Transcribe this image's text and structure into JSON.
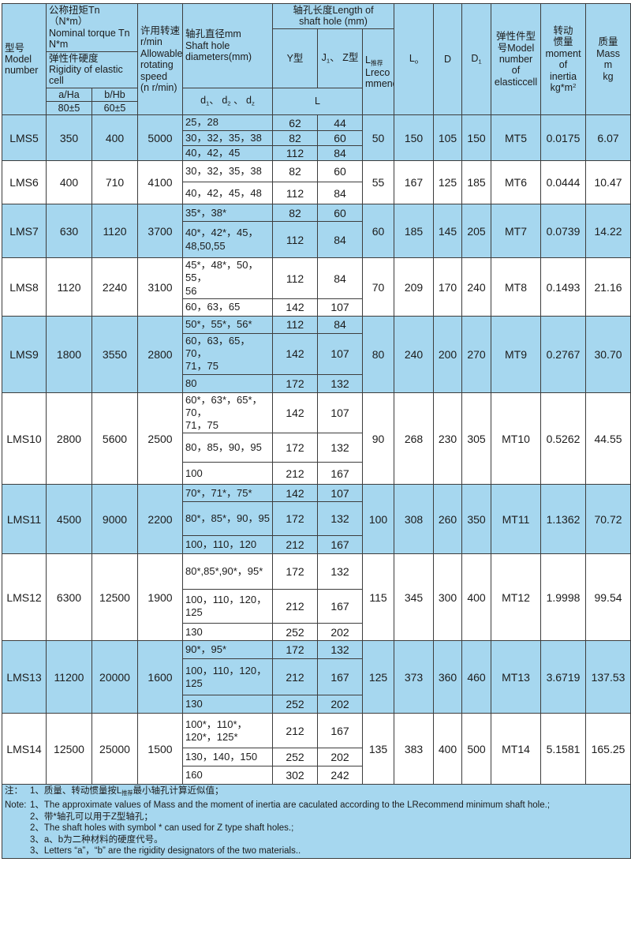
{
  "colors": {
    "row_blue": "#a6d7ef",
    "grid_line": "#3d3d3d",
    "text": "#1c1c1c"
  },
  "table": {
    "header": {
      "model": "型号\nModel\nnumber",
      "torque_group": "公称扭矩Tn（N*m）\nNominal torque Tn\nN*m",
      "rigidity": "弹性件硬度\nRigidity of elastic cell",
      "col_a": "a/Ha",
      "col_b": "b/Hb",
      "val_a": "80±5",
      "val_b": "60±5",
      "speed": "许用转速\nr/min\nAllowable\nrotating\nspeed\n(n r/min)",
      "shaft_dia": "轴孔直径mm\nShaft hole\ndiameters(mm)",
      "d_parts": [
        {
          "t": "d"
        },
        {
          "t": "1",
          "sub": true
        },
        {
          "t": "、 d"
        },
        {
          "t": "2",
          "sub": true
        },
        {
          "t": " 、 d"
        },
        {
          "t": "z",
          "sub": true
        }
      ],
      "shaft_len": "轴孔长度Length of\nshaft hole (mm)",
      "y_type": "Y型",
      "j_type_parts": [
        {
          "t": "J"
        },
        {
          "t": "1",
          "sub": true
        },
        {
          "t": "、 Z型"
        }
      ],
      "l_label": "L",
      "lrec_parts": [
        {
          "t": "L"
        },
        {
          "t": "推荐",
          "sub": true
        },
        {
          "t": "\nLreco\nmmend"
        }
      ],
      "l0_parts": [
        {
          "t": "L"
        },
        {
          "t": "o",
          "sub": true
        }
      ],
      "d_col": "D",
      "d1_parts": [
        {
          "t": "D"
        },
        {
          "t": "1",
          "sub": true
        }
      ],
      "elastic": "弹性件型\n号Model\nnumber\nof\nelasticcell",
      "inertia_parts": [
        {
          "t": "转动\n惯量\nmoment\nof\ninertia\nkg*m"
        },
        {
          "t": "2",
          "sup": true
        }
      ],
      "mass": "质量\nMass\nm\nkg"
    },
    "rows": [
      {
        "model": "LMS5",
        "a": "350",
        "b": "400",
        "speed": "5000",
        "lrec": "50",
        "l0": "150",
        "d": "105",
        "d1": "150",
        "mt": "MT5",
        "inertia": "0.0175",
        "mass": "6.07",
        "subs": [
          {
            "dia": "25，28",
            "y": "62",
            "j": "44"
          },
          {
            "dia": "30，32，35，38",
            "y": "82",
            "j": "60"
          },
          {
            "dia": "40，42，45",
            "y": "112",
            "j": "84"
          }
        ]
      },
      {
        "model": "LMS6",
        "a": "400",
        "b": "710",
        "speed": "4100",
        "lrec": "55",
        "l0": "167",
        "d": "125",
        "d1": "185",
        "mt": "MT6",
        "inertia": "0.0444",
        "mass": "10.47",
        "subs": [
          {
            "dia": "30，32，35，38",
            "y": "82",
            "j": "60"
          },
          {
            "dia": "40，42，45，48",
            "y": "112",
            "j": "84"
          }
        ]
      },
      {
        "model": "LMS7",
        "a": "630",
        "b": "1120",
        "speed": "3700",
        "lrec": "60",
        "l0": "185",
        "d": "145",
        "d1": "205",
        "mt": "MT7",
        "inertia": "0.0739",
        "mass": "14.22",
        "subs": [
          {
            "dia": "35*，38*",
            "y": "82",
            "j": "60"
          },
          {
            "dia": "40*，42*，45，\n48,50,55",
            "y": "112",
            "j": "84"
          }
        ]
      },
      {
        "model": "LMS8",
        "a": "1120",
        "b": "2240",
        "speed": "3100",
        "lrec": "70",
        "l0": "209",
        "d": "170",
        "d1": "240",
        "mt": "MT8",
        "inertia": "0.1493",
        "mass": "21.16",
        "subs": [
          {
            "dia": "45*，48*，50，55，\n56",
            "y": "112",
            "j": "84"
          },
          {
            "dia": "60，63，65",
            "y": "142",
            "j": "107"
          }
        ]
      },
      {
        "model": "LMS9",
        "a": "1800",
        "b": "3550",
        "speed": "2800",
        "lrec": "80",
        "l0": "240",
        "d": "200",
        "d1": "270",
        "mt": "MT9",
        "inertia": "0.2767",
        "mass": "30.70",
        "subs": [
          {
            "dia": "50*，55*，56*",
            "y": "112",
            "j": "84"
          },
          {
            "dia": "60，63，65，70，\n71，75",
            "y": "142",
            "j": "107"
          },
          {
            "dia": "80",
            "y": "172",
            "j": "132"
          }
        ]
      },
      {
        "model": "LMS10",
        "a": "2800",
        "b": "5600",
        "speed": "2500",
        "lrec": "90",
        "l0": "268",
        "d": "230",
        "d1": "305",
        "mt": "MT10",
        "inertia": "0.5262",
        "mass": "44.55",
        "subs": [
          {
            "dia": "60*，63*，65*，70，\n71，75",
            "y": "142",
            "j": "107"
          },
          {
            "dia": "80，85，90，95",
            "y": "172",
            "j": "132"
          },
          {
            "dia": "100",
            "y": "212",
            "j": "167"
          }
        ]
      },
      {
        "model": "LMS11",
        "a": "4500",
        "b": "9000",
        "speed": "2200",
        "lrec": "100",
        "l0": "308",
        "d": "260",
        "d1": "350",
        "mt": "MT11",
        "inertia": "1.1362",
        "mass": "70.72",
        "subs": [
          {
            "dia": "70*，71*，75*",
            "y": "142",
            "j": "107"
          },
          {
            "dia": "80*，85*，90，95",
            "y": "172",
            "j": "132"
          },
          {
            "dia": "100，110，120",
            "y": "212",
            "j": "167"
          }
        ]
      },
      {
        "model": "LMS12",
        "a": "6300",
        "b": "12500",
        "speed": "1900",
        "lrec": "115",
        "l0": "345",
        "d": "300",
        "d1": "400",
        "mt": "MT12",
        "inertia": "1.9998",
        "mass": "99.54",
        "subs": [
          {
            "dia": "80*,85*,90*，95*",
            "y": "172",
            "j": "132"
          },
          {
            "dia": "100，110，120，\n125",
            "y": "212",
            "j": "167"
          },
          {
            "dia": "130",
            "y": "252",
            "j": "202"
          }
        ]
      },
      {
        "model": "LMS13",
        "a": "11200",
        "b": "20000",
        "speed": "1600",
        "lrec": "125",
        "l0": "373",
        "d": "360",
        "d1": "460",
        "mt": "MT13",
        "inertia": "3.6719",
        "mass": "137.53",
        "subs": [
          {
            "dia": "90*，95*",
            "y": "172",
            "j": "132"
          },
          {
            "dia": "100，110，120，\n125",
            "y": "212",
            "j": "167"
          },
          {
            "dia": "130",
            "y": "252",
            "j": "202"
          }
        ]
      },
      {
        "model": "LMS14",
        "a": "12500",
        "b": "25000",
        "speed": "1500",
        "lrec": "135",
        "l0": "383",
        "d": "400",
        "d1": "500",
        "mt": "MT14",
        "inertia": "5.1581",
        "mass": "165.25",
        "subs": [
          {
            "dia": "100*，110*，\n120*，125*",
            "y": "212",
            "j": "167"
          },
          {
            "dia": "130，140，150",
            "y": "252",
            "j": "202"
          },
          {
            "dia": "160",
            "y": "302",
            "j": "242"
          }
        ]
      }
    ]
  },
  "notes": {
    "n1_prefix": "注：",
    "n1_zh_parts": [
      {
        "t": "1、质量、转动惯量按L"
      },
      {
        "t": "推荐",
        "sub": true
      },
      {
        "t": "最小轴孔计算近似值；"
      }
    ],
    "n2_prefix": "Note:",
    "n1_en": "1、The approximate values of Mass and the moment of inertia are caculated according to the LRecommend minimum shaft hole.;",
    "n2_zh": "2、带*轴孔可以用于Z型轴孔；",
    "n2_en": "2、The shaft holes with symbol * can used for Z type shaft holes.;",
    "n3_zh": "3、a、b为二种材料的硬度代号。",
    "n3_en": "3、Letters “a”，“b” are the rigidity designators of the two materials.."
  }
}
